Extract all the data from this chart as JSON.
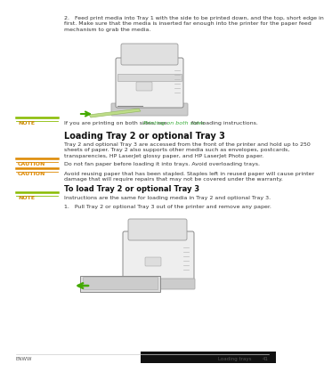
{
  "bg_color": "#ffffff",
  "page_num": "41",
  "footer_left": "ENWW",
  "footer_right": "Loading trays",
  "step2_line1": "2.   Feed print media into Tray 1 with the side to be printed down, and the top, short edge in",
  "step2_line2": "first. Make sure that the media is inserted far enough into the printer for the paper feed",
  "step2_line3": "mechanism to grab the media.",
  "note_label": "NOTE",
  "note_text": "If you are printing on both sides, see ",
  "note_link": "Printing on both sides",
  "note_text2": " for loading instructions.",
  "section_title": "Loading Tray 2 or optional Tray 3",
  "section_body_1": "Tray 2 and optional Tray 3 are accessed from the front of the printer and hold up to 250",
  "section_body_2": "sheets of paper. Tray 2 also supports other media such as envelopes, postcards,",
  "section_body_3": "transparencies, HP LaserJet glossy paper, and HP LaserJet Photo paper.",
  "caution1_label": "CAUTION",
  "caution1_text": "Do not fan paper before loading it into trays. Avoid overloading trays.",
  "caution2_label": "CAUTION",
  "caution2_text1": "Avoid reusing paper that has been stapled. Staples left in reused paper will cause printer",
  "caution2_text2": "damage that will require repairs that may not be covered under the warranty.",
  "subhead": "To load Tray 2 or optional Tray 3",
  "note2_label": "NOTE",
  "note2_text": "Instructions are the same for loading media in Tray 2 and optional Tray 3.",
  "step1_text": "1.   Pull Tray 2 or optional Tray 3 out of the printer and remove any paper.",
  "label_color": "#cc8800",
  "link_color": "#33aa33",
  "note_bar_color": "#88bb00",
  "caution_bar_color": "#dd8800",
  "body_color": "#333333",
  "label_font_size": 4.5,
  "body_font_size": 4.5,
  "title_font_size": 7.0,
  "subhead_font_size": 6.0
}
